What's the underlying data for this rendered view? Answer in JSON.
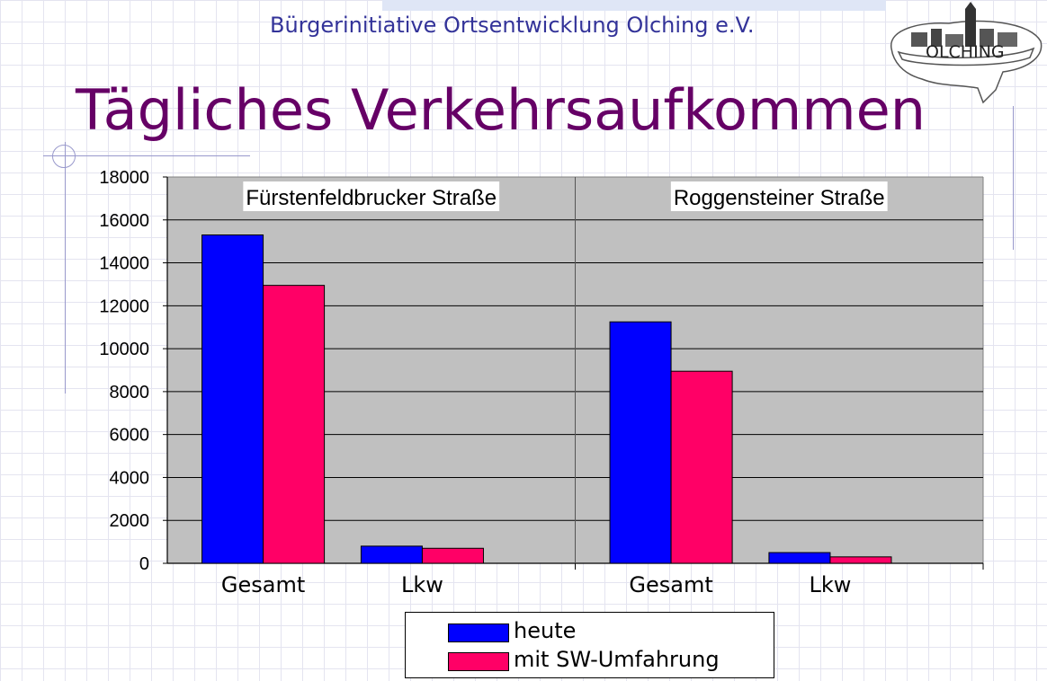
{
  "header": {
    "organization": "Bürgerinitiative Ortsentwicklung Olching e.V.",
    "title": "Tägliches Verkehrsaufkommen",
    "logo_text": "OLCHING"
  },
  "colors": {
    "heute": "#0000ff",
    "mit_sw_umfahrung": "#ff0066",
    "plot_background": "#c0c0c0",
    "title": "#660066",
    "organization": "#333399"
  },
  "chart_data": {
    "type": "bar",
    "title": "Tägliches Verkehrsaufkommen",
    "xlabel": "",
    "ylabel": "",
    "ylim": [
      0,
      18000
    ],
    "yticks": [
      0,
      2000,
      4000,
      6000,
      8000,
      10000,
      12000,
      14000,
      16000,
      18000
    ],
    "grid": true,
    "legend_position": "bottom",
    "groups": [
      {
        "name": "Fürstenfeldbrucker Straße",
        "categories": [
          "Gesamt",
          "Lkw"
        ],
        "series": [
          {
            "name": "heute",
            "values": [
              15300,
              800
            ]
          },
          {
            "name": "mit SW-Umfahrung",
            "values": [
              12950,
              700
            ]
          }
        ]
      },
      {
        "name": "Roggensteiner Straße",
        "categories": [
          "Gesamt",
          "Lkw"
        ],
        "series": [
          {
            "name": "heute",
            "values": [
              11250,
              500
            ]
          },
          {
            "name": "mit SW-Umfahrung",
            "values": [
              8950,
              300
            ]
          }
        ]
      }
    ]
  }
}
